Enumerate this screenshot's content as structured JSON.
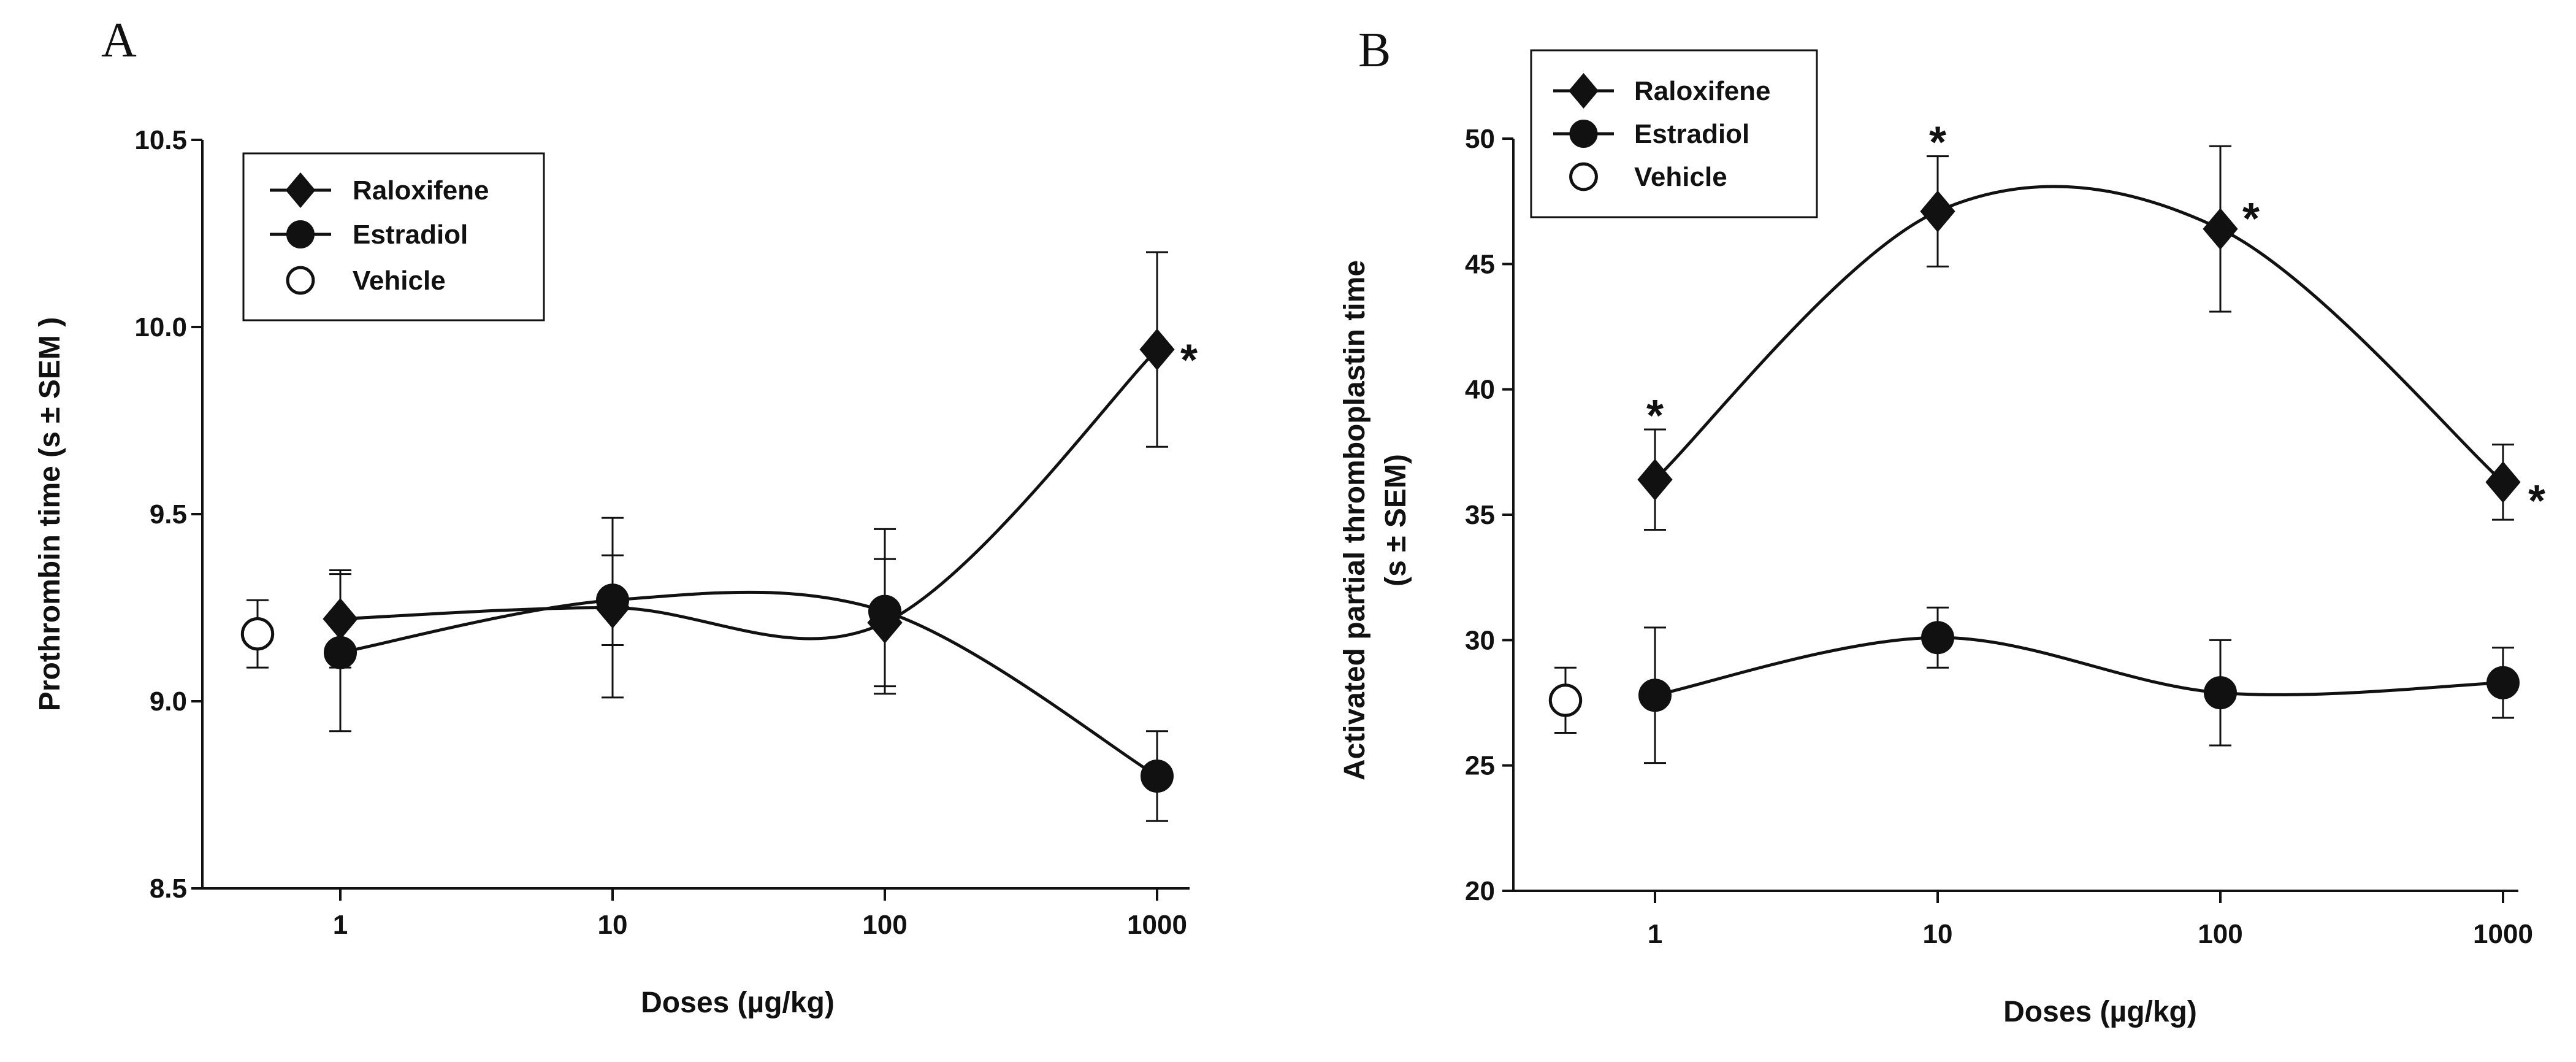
{
  "panels": [
    {
      "letter": "A",
      "xlabel": "Doses (µg/kg)",
      "ylabel": "Prothrombin time (s ± SEM )",
      "yticks": [
        "8.5",
        "9.0",
        "9.5",
        "10.0",
        "10.5"
      ],
      "xticks": [
        "1",
        "10",
        "100",
        "1000"
      ],
      "legend": [
        "Raloxifene",
        "Estradiol",
        "Vehicle"
      ]
    },
    {
      "letter": "B",
      "xlabel": "Doses (µg/kg)",
      "ylabel_line1": "Activated partial thromboplastin time",
      "ylabel_line2": "(s ± SEM)",
      "yticks": [
        "20",
        "25",
        "30",
        "35",
        "40",
        "45",
        "50"
      ],
      "xticks": [
        "1",
        "10",
        "100",
        "1000"
      ],
      "legend": [
        "Raloxifene",
        "Estradiol",
        "Vehicle"
      ]
    }
  ],
  "chart_data": [
    {
      "type": "line",
      "panel": "A",
      "xscale": "log",
      "xlabel": "Doses (µg/kg)",
      "ylabel": "Prothrombin time (s ± SEM )",
      "ylim": [
        8.5,
        10.5
      ],
      "legend_position": "top-left",
      "series": [
        {
          "name": "Raloxifene",
          "marker": "diamond",
          "x": [
            1,
            10,
            100,
            1000
          ],
          "y": [
            9.22,
            9.25,
            9.21,
            9.94
          ],
          "err": [
            0.13,
            0.24,
            0.17,
            0.26
          ],
          "significant": [
            false,
            false,
            false,
            true
          ]
        },
        {
          "name": "Estradiol",
          "marker": "circle",
          "x": [
            1,
            10,
            100,
            1000
          ],
          "y": [
            9.13,
            9.27,
            9.24,
            8.8
          ],
          "err": [
            0.21,
            0.12,
            0.22,
            0.12
          ],
          "significant": [
            false,
            false,
            false,
            false
          ]
        },
        {
          "name": "Vehicle",
          "marker": "open-circle",
          "x": [
            null
          ],
          "y": [
            9.18
          ],
          "err": [
            0.09
          ],
          "significant": [
            false
          ]
        }
      ]
    },
    {
      "type": "line",
      "panel": "B",
      "xscale": "log",
      "xlabel": "Doses (µg/kg)",
      "ylabel": "Activated partial thromboplastin time (s ± SEM)",
      "ylim": [
        20,
        50
      ],
      "legend_position": "top-left",
      "series": [
        {
          "name": "Raloxifene",
          "marker": "diamond",
          "x": [
            1,
            10,
            100,
            1000
          ],
          "y": [
            36.4,
            47.1,
            46.4,
            36.3
          ],
          "err": [
            2.0,
            2.2,
            3.3,
            1.5
          ],
          "significant": [
            true,
            true,
            true,
            true
          ]
        },
        {
          "name": "Estradiol",
          "marker": "circle",
          "x": [
            1,
            10,
            100,
            1000
          ],
          "y": [
            27.8,
            30.1,
            27.9,
            28.3
          ],
          "err": [
            2.7,
            1.2,
            2.1,
            1.4
          ],
          "significant": [
            false,
            false,
            false,
            false
          ]
        },
        {
          "name": "Vehicle",
          "marker": "open-circle",
          "x": [
            null
          ],
          "y": [
            27.6
          ],
          "err": [
            1.3
          ],
          "significant": [
            false
          ]
        }
      ]
    }
  ]
}
